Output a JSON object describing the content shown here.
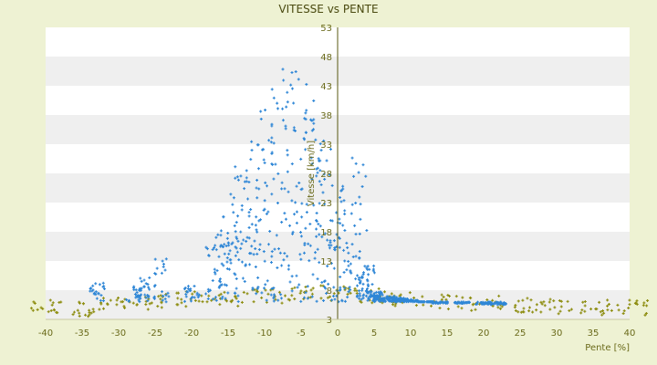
{
  "chart_data": {
    "type": "scatter",
    "title": "VITESSE vs PENTE",
    "xlabel": "Pente [%]",
    "ylabel": "Vitesse [km/h]",
    "xlim": [
      -40,
      40
    ],
    "ylim": [
      3,
      53
    ],
    "x_ticks": [
      -40,
      -35,
      -30,
      -25,
      -20,
      -15,
      -10,
      -5,
      0,
      5,
      10,
      15,
      20,
      25,
      30,
      35,
      40
    ],
    "y_ticks": [
      3,
      8,
      13,
      18,
      23,
      28,
      33,
      38,
      43,
      48,
      53
    ],
    "grid": "alternating horizontal bands",
    "legend": "none",
    "colors": {
      "background": "#eef2d3",
      "plot_band_light": "#ffffff",
      "plot_band_dark": "#efefef",
      "series_blue": "#2e86d6",
      "series_olive": "#8e8e12",
      "axis": "#5a5a10"
    },
    "series": [
      {
        "color": "#2e86d6",
        "description_points": [
          [
            -33,
            9.5
          ],
          [
            -28,
            8.7
          ],
          [
            -26,
            10.4
          ],
          [
            -24,
            14.3
          ],
          [
            -20,
            9.0
          ],
          [
            -17,
            18.0
          ],
          [
            -16,
            16.5
          ],
          [
            -15,
            21.0
          ],
          [
            -14,
            25.5
          ],
          [
            -13,
            31.0
          ],
          [
            -12,
            34.5
          ],
          [
            -11,
            36.0
          ],
          [
            -10,
            40.0
          ],
          [
            -9,
            42.0
          ],
          [
            -8,
            44.5
          ],
          [
            -7,
            46.0
          ],
          [
            -6,
            47.0
          ],
          [
            -5,
            48.0
          ],
          [
            -4,
            44.0
          ],
          [
            -3,
            40.0
          ],
          [
            -2,
            36.0
          ],
          [
            -1,
            31.0
          ],
          [
            0,
            26.0
          ],
          [
            1,
            24.0
          ],
          [
            2,
            20.0
          ],
          [
            3,
            31.0
          ],
          [
            4,
            19.0
          ],
          [
            5,
            10.0
          ],
          [
            6,
            8.5
          ],
          [
            7,
            8.0
          ],
          [
            8,
            7.5
          ],
          [
            9,
            7.0
          ],
          [
            10,
            6.5
          ],
          [
            12,
            6.0
          ],
          [
            14,
            5.5
          ],
          [
            17,
            5.5
          ],
          [
            20,
            5.0
          ],
          [
            22,
            5.0
          ]
        ]
      },
      {
        "color": "#8e8e12",
        "description_points": [
          [
            -40,
            5.0
          ],
          [
            -35,
            4.8
          ],
          [
            -30,
            5.5
          ],
          [
            -25,
            6.0
          ],
          [
            -20,
            6.5
          ],
          [
            -15,
            6.5
          ],
          [
            -10,
            7.0
          ],
          [
            -5,
            7.5
          ],
          [
            0,
            7.5
          ],
          [
            5,
            7.0
          ],
          [
            10,
            6.5
          ],
          [
            15,
            6.0
          ],
          [
            20,
            5.8
          ],
          [
            25,
            5.5
          ],
          [
            30,
            5.2
          ],
          [
            35,
            5.0
          ],
          [
            40,
            5.0
          ]
        ]
      }
    ]
  }
}
